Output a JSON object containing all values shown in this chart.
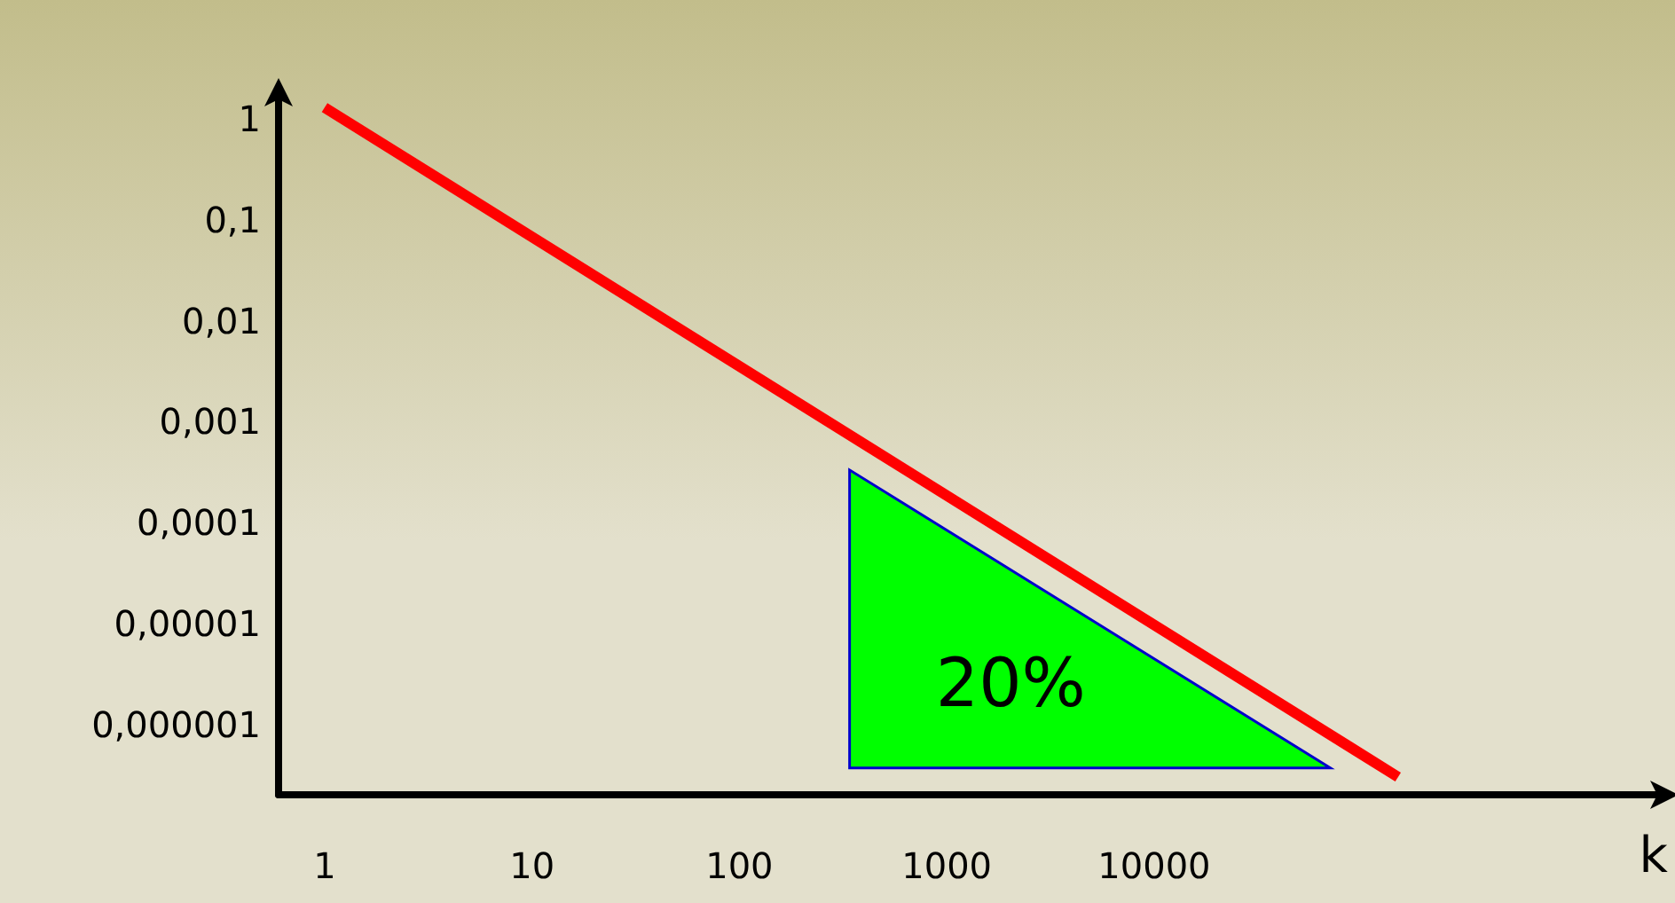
{
  "chart_data": {
    "type": "line",
    "xlabel": "k",
    "log": "xy",
    "grid": false,
    "marker": "none",
    "line_style": "solid",
    "x": [
      1,
      150000
    ],
    "series": [
      {
        "color": "#ff0000",
        "values": [
          1.3,
          3e-07
        ]
      }
    ],
    "xlim": [
      0.6,
      3000000
    ],
    "ylim": [
      2e-07,
      2
    ],
    "xticks": [
      1,
      10,
      100,
      1000,
      10000
    ],
    "yticks": [
      {
        "value": 1,
        "label": "1"
      },
      {
        "value": 0.1,
        "label": "0,1"
      },
      {
        "value": 0.01,
        "label": "0,01"
      },
      {
        "value": 0.001,
        "label": "0,001"
      },
      {
        "value": 0.0001,
        "label": "0,0001"
      },
      {
        "value": 1e-05,
        "label": "0,00001"
      },
      {
        "value": 1e-06,
        "label": "0,000001"
      }
    ],
    "annotations": [
      "20%"
    ]
  }
}
